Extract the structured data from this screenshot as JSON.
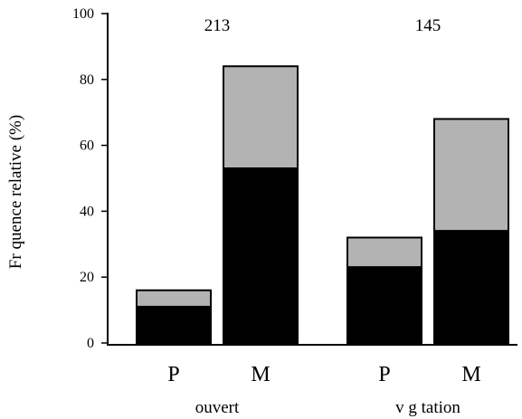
{
  "chart_data": {
    "type": "bar",
    "stacked": true,
    "ylabel": "Fr quence relative (%)",
    "ylim": [
      0,
      100
    ],
    "yticks": [
      "0",
      "20",
      "40",
      "60",
      "80",
      "100"
    ],
    "grid": false,
    "colors": {
      "bottom": "#000000",
      "top": "#b3b3b3",
      "outline": "#000000"
    },
    "groups": [
      {
        "label": "ouvert",
        "count": "213",
        "categories": [
          "P",
          "M"
        ]
      },
      {
        "label": "v g tation",
        "count": "145",
        "categories": [
          "P",
          "M"
        ]
      }
    ],
    "bars": [
      {
        "group": "ouvert",
        "category": "P",
        "bottom": 11,
        "total": 16
      },
      {
        "group": "ouvert",
        "category": "M",
        "bottom": 53,
        "total": 84
      },
      {
        "group": "v g tation",
        "category": "P",
        "bottom": 23,
        "total": 32
      },
      {
        "group": "v g tation",
        "category": "M",
        "bottom": 34,
        "total": 68
      }
    ]
  }
}
